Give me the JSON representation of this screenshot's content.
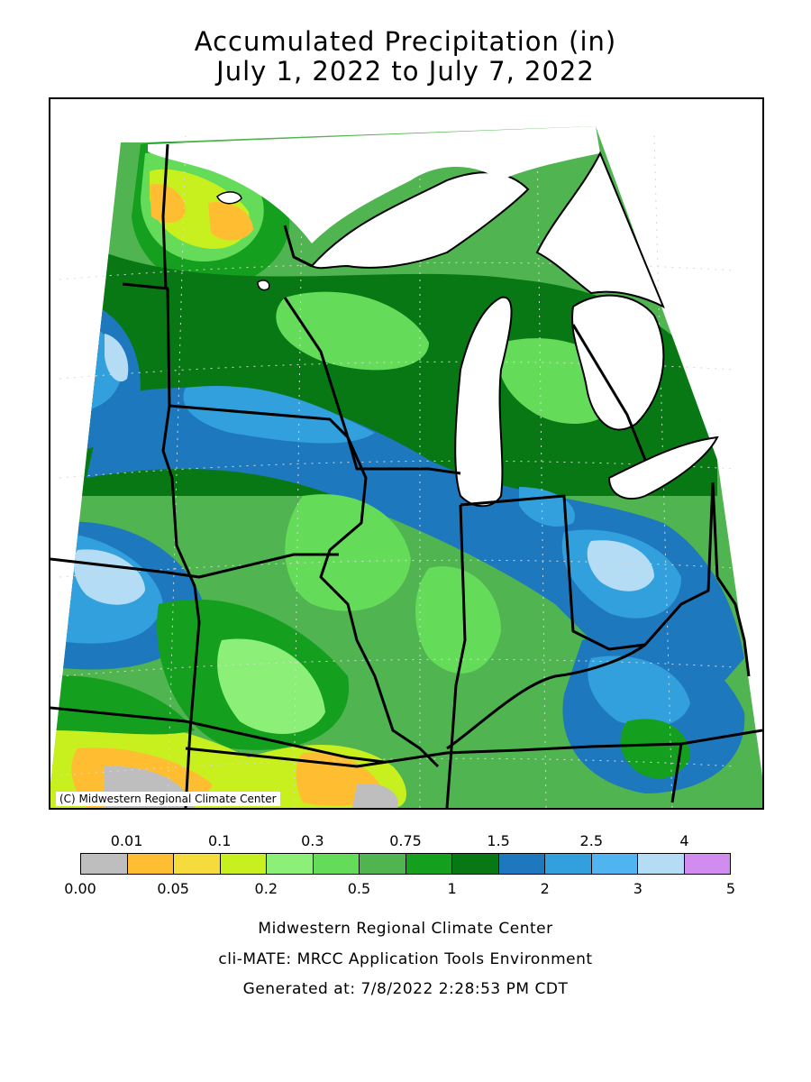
{
  "title": {
    "line1": "Accumulated Precipitation (in)",
    "line2": "July 1, 2022 to July 7, 2022"
  },
  "map": {
    "credit": "(C) Midwestern Regional Climate Center",
    "colors": {
      "lake": "#ffffff",
      "border": "#000000",
      "grid": "#d8d8d8"
    }
  },
  "legend": {
    "bins": [
      {
        "range": "0.00-0.01",
        "color": "#bebebe"
      },
      {
        "range": "0.01-0.05",
        "color": "#ffbe32"
      },
      {
        "range": "0.05-0.1",
        "color": "#f5dc3c"
      },
      {
        "range": "0.1-0.2",
        "color": "#c8f01e"
      },
      {
        "range": "0.2-0.3",
        "color": "#8cf078"
      },
      {
        "range": "0.3-0.5",
        "color": "#64dc5a"
      },
      {
        "range": "0.5-0.75",
        "color": "#50b450"
      },
      {
        "range": "0.75-1",
        "color": "#14a01e"
      },
      {
        "range": "1-1.5",
        "color": "#087814"
      },
      {
        "range": "1.5-2",
        "color": "#1e78be"
      },
      {
        "range": "2-2.5",
        "color": "#32a0dc"
      },
      {
        "range": "2.5-3",
        "color": "#50b4f0"
      },
      {
        "range": "3-4",
        "color": "#b4dcf5"
      },
      {
        "range": "4-5",
        "color": "#d28cf0"
      }
    ],
    "top_labels": [
      "0.01",
      "0.1",
      "0.3",
      "0.75",
      "1.5",
      "2.5",
      "4"
    ],
    "bottom_labels": [
      "0.00",
      "0.05",
      "0.2",
      "0.5",
      "1",
      "2",
      "3",
      "5"
    ]
  },
  "footer": {
    "line1": "Midwestern Regional Climate Center",
    "line2": "cli-MATE: MRCC Application Tools Environment",
    "line3": "Generated at: 7/8/2022 2:28:53 PM CDT"
  }
}
